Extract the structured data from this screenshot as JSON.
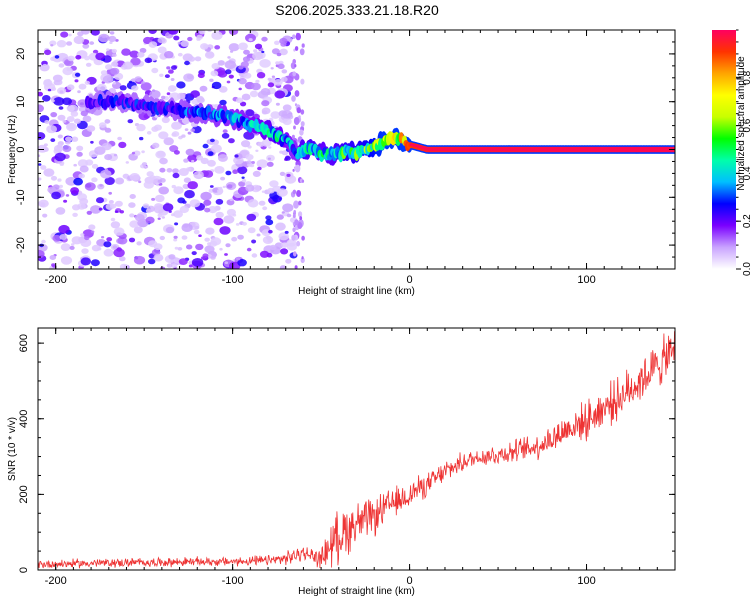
{
  "figure_title": "S206.2025.333.21.18.R20",
  "chart_data": [
    {
      "type": "heatmap",
      "title": "S206.2025.333.21.18.R20",
      "xlabel": "Height of straight line (km)",
      "ylabel": "Frequency (Hz)",
      "xlim": [
        -210,
        150
      ],
      "ylim": [
        -25,
        25
      ],
      "xticks": [
        -200,
        -100,
        0,
        100
      ],
      "xtick_labels": [
        "-200",
        "-100",
        "0",
        "100"
      ],
      "yticks": [
        -20,
        -10,
        0,
        10,
        20
      ],
      "ytick_labels": [
        "-20",
        "-10",
        "0",
        "10",
        "20"
      ],
      "ridge": {
        "x": [
          -182,
          -175,
          -165,
          -155,
          -145,
          -135,
          -125,
          -115,
          -105,
          -95,
          -88,
          -80,
          -75,
          -70,
          -66,
          -63,
          -60,
          -55,
          -50,
          -45,
          -40,
          -35,
          -30,
          -25,
          -20,
          -15,
          -10,
          -5,
          0,
          5,
          10,
          20,
          40,
          60,
          80,
          100,
          120,
          150
        ],
        "y": [
          10,
          10,
          10,
          9.5,
          9,
          8.5,
          8,
          7.5,
          7,
          6,
          5,
          4,
          3,
          2,
          0,
          -1,
          0,
          0,
          -1,
          -1,
          -1,
          -0.5,
          -0.5,
          0,
          0.5,
          1.5,
          2.5,
          2,
          1,
          0.5,
          0,
          0,
          0,
          0,
          0,
          0,
          0,
          0
        ],
        "amplitude": [
          0.25,
          0.3,
          0.3,
          0.3,
          0.3,
          0.3,
          0.35,
          0.35,
          0.4,
          0.4,
          0.45,
          0.5,
          0.5,
          0.45,
          0.4,
          0.4,
          0.55,
          0.55,
          0.5,
          0.5,
          0.55,
          0.6,
          0.6,
          0.65,
          0.7,
          0.75,
          0.8,
          0.85,
          0.9,
          0.92,
          0.95,
          0.95,
          0.96,
          0.96,
          0.97,
          0.97,
          0.98,
          0.98
        ]
      },
      "noise_region_x": [
        -210,
        -65
      ],
      "colorbar": {
        "label": "Normalized spectral amplitude",
        "range": [
          0,
          1
        ],
        "ticks": [
          0.0,
          0.2,
          0.4,
          0.6,
          0.8
        ],
        "tick_labels": [
          "0.0",
          "0.2",
          "0.4",
          "0.6",
          "0.8"
        ],
        "colors": [
          "#ffffff",
          "#c9a3ff",
          "#7a00ff",
          "#0000ff",
          "#00bfff",
          "#00ffaa",
          "#00ff00",
          "#c8ff00",
          "#ffff00",
          "#ffa500",
          "#ff3300",
          "#ff0060"
        ]
      }
    },
    {
      "type": "line",
      "xlabel": "Height of straight line (km)",
      "ylabel": "SNR (10 * v/v)",
      "xlim": [
        -210,
        150
      ],
      "ylim": [
        0,
        640
      ],
      "xticks": [
        -200,
        -100,
        0,
        100
      ],
      "xtick_labels": [
        "-200",
        "-100",
        "0",
        "100"
      ],
      "yticks": [
        0,
        200,
        400,
        600
      ],
      "ytick_labels": [
        "0",
        "200",
        "400",
        "600"
      ],
      "color": "#ee3333",
      "series": [
        {
          "name": "SNR",
          "x": [
            -210,
            -180,
            -150,
            -120,
            -100,
            -80,
            -70,
            -60,
            -50,
            -45,
            -40,
            -35,
            -30,
            -25,
            -20,
            -15,
            -10,
            -5,
            0,
            5,
            10,
            20,
            30,
            40,
            50,
            60,
            70,
            80,
            90,
            100,
            110,
            120,
            130,
            140,
            145,
            150
          ],
          "y": [
            15,
            18,
            20,
            22,
            22,
            25,
            30,
            45,
            30,
            65,
            90,
            110,
            125,
            130,
            140,
            160,
            175,
            185,
            200,
            215,
            225,
            260,
            285,
            300,
            305,
            315,
            325,
            345,
            375,
            395,
            430,
            460,
            500,
            540,
            560,
            580
          ],
          "noise_amp": [
            12,
            12,
            12,
            12,
            12,
            14,
            18,
            20,
            25,
            60,
            70,
            70,
            60,
            55,
            50,
            45,
            40,
            40,
            35,
            35,
            30,
            30,
            25,
            25,
            30,
            30,
            35,
            40,
            45,
            50,
            55,
            55,
            60,
            60,
            65,
            70
          ]
        }
      ]
    }
  ]
}
